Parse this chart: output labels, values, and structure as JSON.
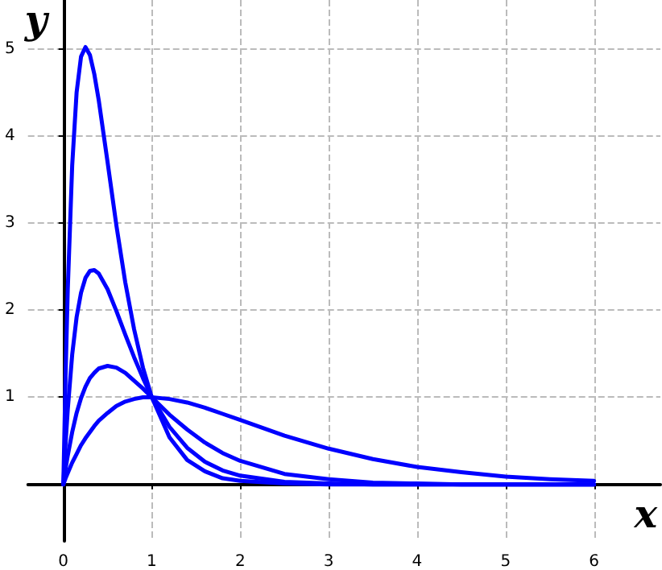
{
  "chart_data": {
    "type": "line",
    "xlabel": "x",
    "ylabel": "y",
    "x": [
      0,
      0.025,
      0.05,
      0.1,
      0.15,
      0.2,
      0.25,
      0.3,
      0.35,
      0.4,
      0.5,
      0.6,
      0.7,
      0.8,
      0.9,
      1,
      1.2,
      1.4,
      1.6,
      1.8,
      2,
      2.5,
      3,
      3.5,
      4,
      4.5,
      5,
      5.5,
      6
    ],
    "series": [
      {
        "color": "#0000ff",
        "values": [
          0,
          0.07,
          0.13,
          0.25,
          0.35,
          0.45,
          0.53,
          0.6,
          0.67,
          0.73,
          0.82,
          0.9,
          0.95,
          0.98,
          1,
          1,
          0.98,
          0.94,
          0.88,
          0.81,
          0.74,
          0.56,
          0.41,
          0.29,
          0.2,
          0.14,
          0.09,
          0.06,
          0.04
        ]
      },
      {
        "color": "#0000ff",
        "values": [
          0,
          0.18,
          0.33,
          0.6,
          0.82,
          0.99,
          1.12,
          1.22,
          1.28,
          1.33,
          1.36,
          1.34,
          1.28,
          1.19,
          1.1,
          1,
          0.8,
          0.63,
          0.48,
          0.36,
          0.27,
          0.12,
          0.06,
          0.02,
          0.01,
          0,
          0,
          0,
          0
        ]
      },
      {
        "color": "#0000ff",
        "values": [
          0,
          0.47,
          0.86,
          1.49,
          1.92,
          2.2,
          2.37,
          2.45,
          2.46,
          2.42,
          2.24,
          1.99,
          1.72,
          1.46,
          1.22,
          1,
          0.66,
          0.42,
          0.26,
          0.16,
          0.1,
          0.03,
          0.01,
          0,
          0,
          0,
          0,
          0,
          0
        ]
      },
      {
        "color": "#0000ff",
        "values": [
          0,
          1.24,
          2.24,
          3.66,
          4.5,
          4.91,
          5.02,
          4.93,
          4.71,
          4.41,
          3.7,
          2.97,
          2.32,
          1.78,
          1.34,
          1,
          0.54,
          0.28,
          0.15,
          0.07,
          0.04,
          0.01,
          0,
          0,
          0,
          0,
          0,
          0,
          0
        ]
      }
    ],
    "xlim": [
      -0.4,
      6.75
    ],
    "ylim": [
      -0.65,
      5.56
    ],
    "xticks": [
      0,
      1,
      2,
      3,
      4,
      5,
      6
    ],
    "yticks": [
      1,
      2,
      3,
      4,
      5
    ],
    "grid": true,
    "marker": "none",
    "line_style": "solid"
  }
}
